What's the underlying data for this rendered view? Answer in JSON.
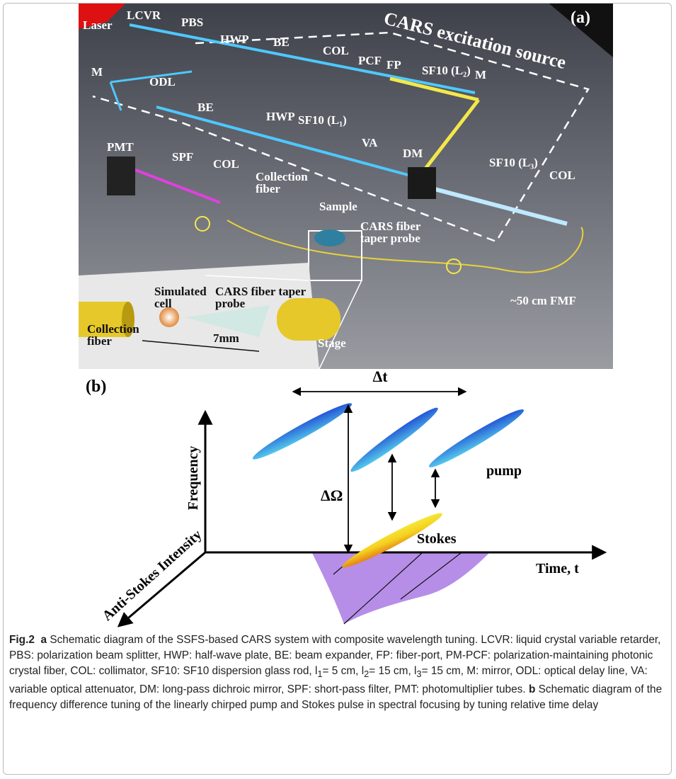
{
  "panel_a": {
    "tag": "(a)",
    "title": "CARS excitation source",
    "labels": [
      "Laser",
      "LCVR",
      "PBS",
      "HWP",
      "BE",
      "COL",
      "PCF",
      "FP",
      "SF10 (L₂)",
      "M",
      "M",
      "ODL",
      "BE",
      "HWP",
      "SF10 (L₁)",
      "VA",
      "DM",
      "SF10 (L₃)",
      "COL",
      "PMT",
      "SPF",
      "COL",
      "Collection fiber",
      "Sample",
      "CARS fiber taper probe",
      "~50 cm FMF",
      "Stage"
    ],
    "inset_labels": [
      "Simulated cell",
      "CARS fiber taper probe",
      "Collection fiber",
      "7mm"
    ]
  },
  "panel_b": {
    "tag": "(b)",
    "frequency_axis": "Frequency",
    "time_axis": "Time, t",
    "intensity_axis": "Anti-Stokes Intensity",
    "delta_t": "Δt",
    "delta_omega": "ΔΩ",
    "pump": "pump",
    "stokes": "Stokes"
  },
  "caption": {
    "parts": [
      "Fig.2",
      "a",
      "Schematic diagram of the SSFS-based CARS system with composite wavelength tuning. LCVR: liquid crystal variable retarder, PBS: polarization beam splitter, HWP: half-wave plate, BE: beam expander, FP: fiber-port, PM-PCF: polarization-maintaining photonic crystal fiber, COL: collimator, SF10: SF10 dispersion glass rod, l",
      "1",
      "= 5 cm, l",
      "2",
      "= 15 cm, l",
      "3",
      "= 15 cm, M: mirror, ODL: optical delay line, VA: variable optical attenuator, DM: long-pass dichroic mirror, SPF: short-pass filter, PMT: photomultiplier tubes.",
      "b",
      "Schematic diagram of the frequency difference tuning of the linearly chirped pump and Stokes pulse in spectral focusing by tuning relative time delay"
    ]
  }
}
